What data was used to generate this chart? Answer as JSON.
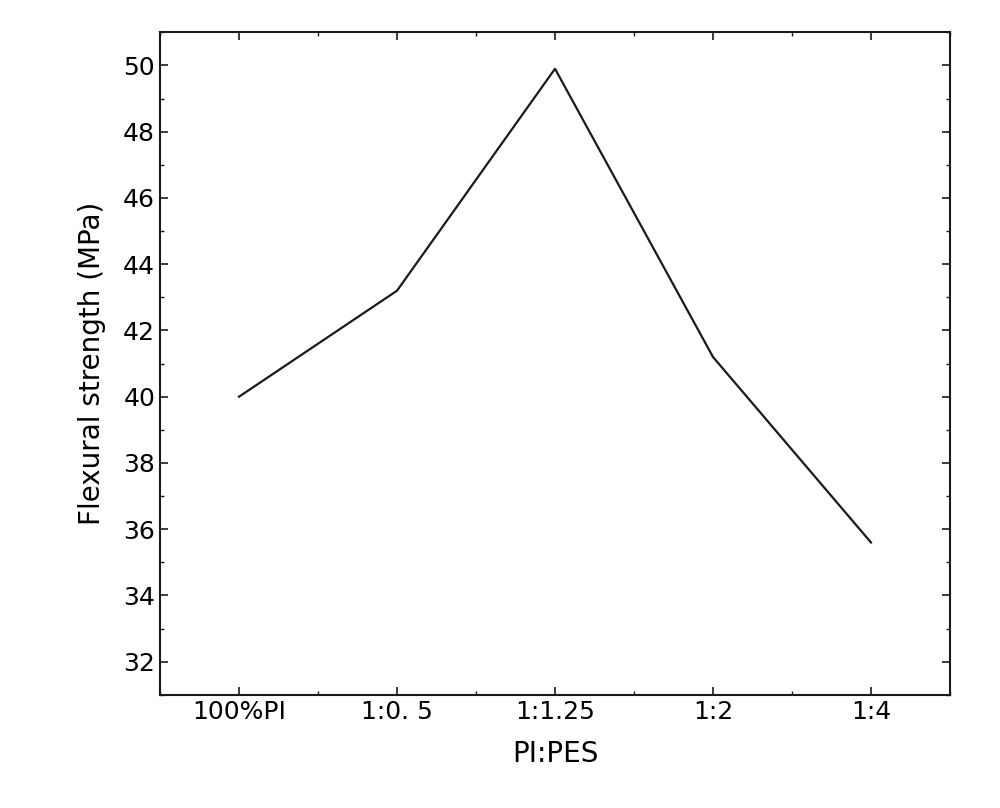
{
  "x_labels": [
    "100%PI",
    "1:0. 5",
    "1:1.25",
    "1:2",
    "1:4"
  ],
  "x_positions": [
    0,
    1,
    2,
    3,
    4
  ],
  "y_values": [
    40.0,
    43.2,
    49.9,
    41.2,
    35.6
  ],
  "xlabel": "PI:PES",
  "ylabel": "Flexural strength (MPa)",
  "ylim": [
    31,
    51
  ],
  "yticks": [
    32,
    34,
    36,
    38,
    40,
    42,
    44,
    46,
    48,
    50
  ],
  "line_color": "#1a1a1a",
  "line_width": 1.6,
  "background_color": "#ffffff",
  "xlabel_fontsize": 20,
  "ylabel_fontsize": 20,
  "tick_fontsize": 18
}
